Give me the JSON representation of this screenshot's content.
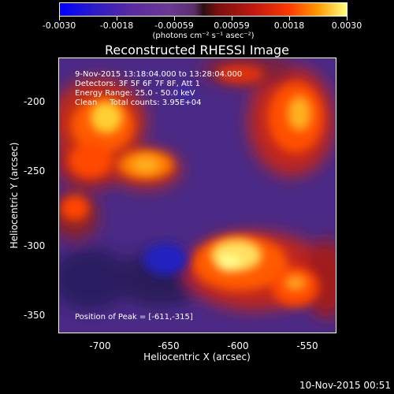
{
  "colorbar": {
    "tick_labels": [
      "-0.0030",
      "-0.0018",
      "-0.00059",
      "0.00059",
      "0.0018",
      "0.0030"
    ],
    "unit_label": "(photons cm⁻² s⁻¹ asec⁻²)",
    "range": [
      -0.003,
      0.003
    ]
  },
  "title": "Reconstructed RHESSI Image",
  "annotations": {
    "time_range": "9-Nov-2015 13:18:04.000 to 13:28:04.000",
    "detectors": "Detectors: 3F 5F 6F 7F 8F, Att 1",
    "energy": "Energy Range: 25.0 - 50.0 keV",
    "clean": "Clean     Total counts: 3.95E+04",
    "peak": "Position of Peak = [-611,-315]"
  },
  "axes": {
    "xlabel": "Heliocentric X (arcsec)",
    "ylabel": "Heliocentric Y (arcsec)",
    "x_ticks": [
      "-700",
      "-650",
      "-600",
      "-550"
    ],
    "y_ticks": [
      "-200",
      "-250",
      "-300",
      "-350"
    ],
    "xlim": [
      -727,
      -528
    ],
    "ylim": [
      -366,
      -168
    ]
  },
  "footer_date": "10-Nov-2015 00:51"
}
